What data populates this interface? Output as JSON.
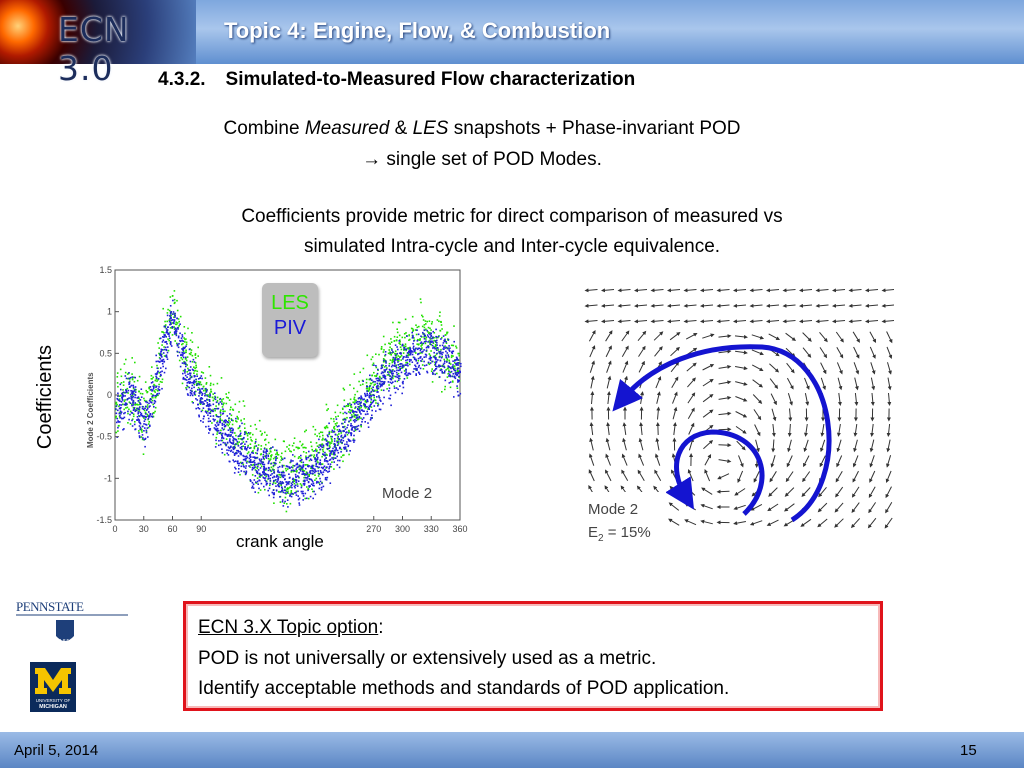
{
  "header": {
    "logo_text": "ECN 3.0",
    "title": "Topic 4:  Engine, Flow, & Combustion"
  },
  "section": {
    "number": "4.3.2.",
    "title": "Simulated-to-Measured Flow characterization"
  },
  "body": {
    "line1": {
      "a": "Combine ",
      "b": "Measured",
      "c": " & ",
      "d": "LES",
      "e": " snapshots  + Phase-invariant POD"
    },
    "line2": "→ single set of POD Modes.",
    "line3": "Coefficients provide metric for direct comparison of measured vs",
    "line4": "simulated  Intra-cycle and Inter-cycle equivalence."
  },
  "chart_data": {
    "type": "scatter",
    "ylabel_inner": "Mode 2 Coefficients",
    "ylabel_outer": "Coefficients",
    "xlabel": "crank angle",
    "annotation": "Mode 2",
    "xlim": [
      0,
      360
    ],
    "ylim": [
      -1.5,
      1.5
    ],
    "xticks": [
      "0",
      "30",
      "60",
      "90",
      "270",
      "300",
      "330",
      "360"
    ],
    "xtick_values": [
      0,
      30,
      60,
      90,
      270,
      300,
      330,
      360
    ],
    "yticks": [
      "1.5",
      "1",
      "0.5",
      "0",
      "-0.5",
      "-1",
      "-1.5"
    ],
    "ytick_values": [
      1.5,
      1,
      0.5,
      0,
      -0.5,
      -1,
      -1.5
    ],
    "series": [
      {
        "name": "LES",
        "color": "#22e000",
        "x": [
          0,
          15,
          30,
          45,
          55,
          60,
          65,
          75,
          90,
          110,
          130,
          150,
          170,
          180,
          200,
          220,
          240,
          260,
          280,
          300,
          320,
          340,
          360
        ],
        "y": [
          -0.1,
          0.05,
          -0.25,
          0.35,
          0.85,
          1.05,
          0.8,
          0.4,
          0.1,
          -0.25,
          -0.5,
          -0.75,
          -0.9,
          -0.95,
          -0.85,
          -0.6,
          -0.3,
          0.0,
          0.35,
          0.55,
          0.7,
          0.55,
          0.35
        ],
        "spread": 0.28
      },
      {
        "name": "PIV",
        "color": "#1f1fd8",
        "x": [
          0,
          15,
          30,
          45,
          55,
          60,
          65,
          75,
          90,
          110,
          130,
          150,
          170,
          180,
          200,
          220,
          240,
          260,
          280,
          300,
          320,
          340,
          360
        ],
        "y": [
          -0.2,
          0.0,
          -0.35,
          0.25,
          0.75,
          0.95,
          0.7,
          0.25,
          -0.05,
          -0.4,
          -0.65,
          -0.85,
          -1.0,
          -1.05,
          -0.95,
          -0.75,
          -0.45,
          -0.1,
          0.2,
          0.4,
          0.55,
          0.5,
          0.3
        ],
        "spread": 0.22
      }
    ]
  },
  "legend": {
    "les": "LES",
    "piv": "PIV",
    "les_color": "#2ee600",
    "piv_color": "#1a1ad8"
  },
  "vector_field": {
    "label_line1": "Mode 2",
    "label_line2_prefix": "E",
    "label_line2_sub": "2",
    "label_line2_suffix": " = 15%",
    "arrow_color": "#1414d0"
  },
  "callout": {
    "topic_option": "ECN 3.X  Topic option",
    "colon": ":",
    "line2": "POD is not universally or extensively used as a metric.",
    "line3": "Identify acceptable methods and standards of POD application."
  },
  "logos": {
    "pennstate": "PENNSTATE",
    "pennstate_year": "1855",
    "michigan_line1": "UNIVERSITY OF",
    "michigan_line2": "MICHIGAN"
  },
  "footer": {
    "date": "April 5, 2014",
    "page": "15"
  }
}
